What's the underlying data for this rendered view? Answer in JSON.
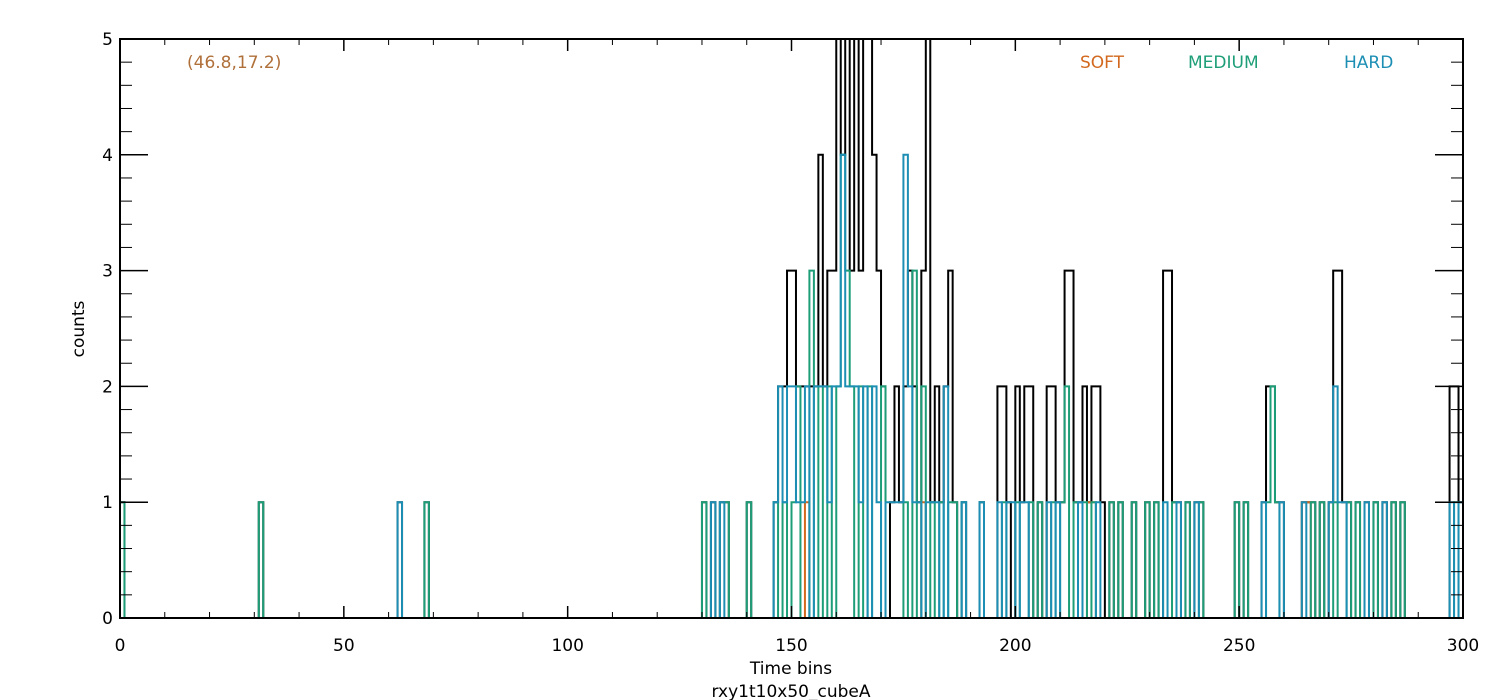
{
  "chart_data": {
    "type": "line",
    "step": true,
    "title": "",
    "xlabel": "Time bins",
    "ylabel": "counts",
    "footer_label": "rxy1t10x50_cubeA",
    "annotation": "(46.8,17.2)",
    "xlim": [
      0,
      300
    ],
    "ylim": [
      0,
      5
    ],
    "xticks": [
      0,
      50,
      100,
      150,
      200,
      250,
      300
    ],
    "xtick_labels": [
      "0",
      "50",
      "100",
      "150",
      "200",
      "250",
      "300"
    ],
    "yticks": [
      0,
      1,
      2,
      3,
      4,
      5
    ],
    "ytick_labels": [
      "0",
      "1",
      "2",
      "3",
      "4",
      "5"
    ],
    "x_minor_step": 10,
    "y_minor_step": 0.2,
    "grid": false,
    "legend_position": "top-right",
    "colors": {
      "total": "#000000",
      "soft": "#d2691e",
      "medium": "#1e9e78",
      "hard": "#1e8fb4",
      "annotation": "#b0703a"
    },
    "legend": [
      "SOFT",
      "MEDIUM",
      "HARD"
    ],
    "series": [
      {
        "key": "total",
        "points": [
          [
            0,
            1
          ],
          [
            31,
            1
          ],
          [
            62,
            1
          ],
          [
            68,
            1
          ],
          [
            130,
            1
          ],
          [
            132,
            1
          ],
          [
            134,
            1
          ],
          [
            135,
            1
          ],
          [
            140,
            1
          ],
          [
            146,
            1
          ],
          [
            147,
            2
          ],
          [
            148,
            2
          ],
          [
            149,
            3
          ],
          [
            150,
            3
          ],
          [
            151,
            2
          ],
          [
            152,
            2
          ],
          [
            153,
            2
          ],
          [
            154,
            2
          ],
          [
            155,
            2
          ],
          [
            156,
            4
          ],
          [
            157,
            2
          ],
          [
            158,
            3
          ],
          [
            159,
            3
          ],
          [
            160,
            5
          ],
          [
            161,
            4
          ],
          [
            162,
            5
          ],
          [
            163,
            3
          ],
          [
            164,
            5
          ],
          [
            165,
            3
          ],
          [
            166,
            5
          ],
          [
            167,
            5
          ],
          [
            168,
            4
          ],
          [
            169,
            3
          ],
          [
            170,
            2
          ],
          [
            172,
            1
          ],
          [
            173,
            2
          ],
          [
            174,
            1
          ],
          [
            175,
            2
          ],
          [
            176,
            3
          ],
          [
            177,
            2
          ],
          [
            178,
            1
          ],
          [
            179,
            3
          ],
          [
            180,
            5
          ],
          [
            181,
            1
          ],
          [
            182,
            2
          ],
          [
            183,
            1
          ],
          [
            184,
            2
          ],
          [
            185,
            3
          ],
          [
            186,
            1
          ],
          [
            188,
            1
          ],
          [
            192,
            1
          ],
          [
            196,
            2
          ],
          [
            197,
            2
          ],
          [
            198,
            1
          ],
          [
            200,
            2
          ],
          [
            201,
            1
          ],
          [
            202,
            2
          ],
          [
            203,
            2
          ],
          [
            205,
            1
          ],
          [
            207,
            2
          ],
          [
            208,
            2
          ],
          [
            209,
            1
          ],
          [
            210,
            1
          ],
          [
            211,
            3
          ],
          [
            212,
            3
          ],
          [
            213,
            1
          ],
          [
            214,
            1
          ],
          [
            215,
            2
          ],
          [
            216,
            1
          ],
          [
            217,
            2
          ],
          [
            218,
            2
          ],
          [
            219,
            1
          ],
          [
            221,
            1
          ],
          [
            223,
            1
          ],
          [
            226,
            1
          ],
          [
            229,
            1
          ],
          [
            231,
            1
          ],
          [
            233,
            3
          ],
          [
            234,
            3
          ],
          [
            235,
            1
          ],
          [
            236,
            1
          ],
          [
            238,
            1
          ],
          [
            240,
            1
          ],
          [
            241,
            1
          ],
          [
            249,
            1
          ],
          [
            251,
            1
          ],
          [
            255,
            1
          ],
          [
            256,
            2
          ],
          [
            257,
            2
          ],
          [
            258,
            1
          ],
          [
            259,
            1
          ],
          [
            264,
            1
          ],
          [
            265,
            1
          ],
          [
            266,
            1
          ],
          [
            268,
            1
          ],
          [
            270,
            1
          ],
          [
            271,
            3
          ],
          [
            272,
            3
          ],
          [
            273,
            1
          ],
          [
            274,
            1
          ],
          [
            276,
            1
          ],
          [
            278,
            1
          ],
          [
            280,
            1
          ],
          [
            282,
            1
          ],
          [
            284,
            1
          ],
          [
            286,
            1
          ],
          [
            297,
            2
          ],
          [
            298,
            2
          ],
          [
            299,
            1
          ]
        ]
      },
      {
        "key": "soft",
        "points": [
          [
            153,
            1
          ],
          [
            179,
            1
          ],
          [
            216,
            1
          ],
          [
            217,
            1
          ],
          [
            264,
            1
          ],
          [
            265,
            1
          ]
        ]
      },
      {
        "key": "medium",
        "points": [
          [
            0,
            1
          ],
          [
            31,
            1
          ],
          [
            68,
            1
          ],
          [
            130,
            1
          ],
          [
            134,
            1
          ],
          [
            135,
            1
          ],
          [
            140,
            1
          ],
          [
            146,
            1
          ],
          [
            148,
            1
          ],
          [
            150,
            1
          ],
          [
            151,
            2
          ],
          [
            154,
            3
          ],
          [
            156,
            2
          ],
          [
            158,
            2
          ],
          [
            160,
            2
          ],
          [
            161,
            4
          ],
          [
            162,
            3
          ],
          [
            163,
            2
          ],
          [
            165,
            2
          ],
          [
            167,
            2
          ],
          [
            170,
            2
          ],
          [
            175,
            1
          ],
          [
            177,
            3
          ],
          [
            179,
            2
          ],
          [
            181,
            1
          ],
          [
            183,
            1
          ],
          [
            185,
            1
          ],
          [
            186,
            1
          ],
          [
            188,
            1
          ],
          [
            192,
            1
          ],
          [
            197,
            1
          ],
          [
            200,
            1
          ],
          [
            203,
            1
          ],
          [
            205,
            1
          ],
          [
            208,
            1
          ],
          [
            210,
            1
          ],
          [
            211,
            2
          ],
          [
            213,
            1
          ],
          [
            215,
            1
          ],
          [
            217,
            1
          ],
          [
            221,
            1
          ],
          [
            223,
            1
          ],
          [
            226,
            1
          ],
          [
            229,
            1
          ],
          [
            231,
            1
          ],
          [
            235,
            1
          ],
          [
            238,
            1
          ],
          [
            241,
            1
          ],
          [
            249,
            1
          ],
          [
            251,
            1
          ],
          [
            256,
            1
          ],
          [
            257,
            2
          ],
          [
            258,
            1
          ],
          [
            266,
            1
          ],
          [
            268,
            1
          ],
          [
            271,
            1
          ],
          [
            274,
            1
          ],
          [
            276,
            1
          ],
          [
            280,
            1
          ],
          [
            284,
            1
          ],
          [
            286,
            1
          ],
          [
            298,
            1
          ]
        ]
      },
      {
        "key": "hard",
        "points": [
          [
            62,
            1
          ],
          [
            132,
            1
          ],
          [
            134,
            1
          ],
          [
            146,
            1
          ],
          [
            147,
            2
          ],
          [
            148,
            1
          ],
          [
            149,
            2
          ],
          [
            150,
            2
          ],
          [
            151,
            1
          ],
          [
            152,
            1
          ],
          [
            153,
            2
          ],
          [
            155,
            2
          ],
          [
            156,
            2
          ],
          [
            157,
            2
          ],
          [
            158,
            1
          ],
          [
            159,
            2
          ],
          [
            160,
            2
          ],
          [
            161,
            4
          ],
          [
            162,
            2
          ],
          [
            163,
            2
          ],
          [
            164,
            2
          ],
          [
            165,
            1
          ],
          [
            166,
            2
          ],
          [
            168,
            2
          ],
          [
            169,
            1
          ],
          [
            171,
            1
          ],
          [
            172,
            1
          ],
          [
            173,
            1
          ],
          [
            174,
            1
          ],
          [
            175,
            4
          ],
          [
            176,
            2
          ],
          [
            177,
            1
          ],
          [
            178,
            1
          ],
          [
            180,
            1
          ],
          [
            181,
            1
          ],
          [
            182,
            1
          ],
          [
            184,
            2
          ],
          [
            188,
            1
          ],
          [
            192,
            1
          ],
          [
            196,
            1
          ],
          [
            198,
            1
          ],
          [
            199,
            1
          ],
          [
            201,
            1
          ],
          [
            202,
            1
          ],
          [
            207,
            1
          ],
          [
            209,
            1
          ],
          [
            214,
            1
          ],
          [
            218,
            1
          ],
          [
            233,
            1
          ],
          [
            236,
            1
          ],
          [
            240,
            1
          ],
          [
            255,
            1
          ],
          [
            259,
            1
          ],
          [
            264,
            1
          ],
          [
            270,
            1
          ],
          [
            271,
            2
          ],
          [
            272,
            1
          ],
          [
            273,
            1
          ],
          [
            278,
            1
          ],
          [
            282,
            1
          ],
          [
            297,
            1
          ],
          [
            299,
            1
          ]
        ]
      }
    ]
  }
}
